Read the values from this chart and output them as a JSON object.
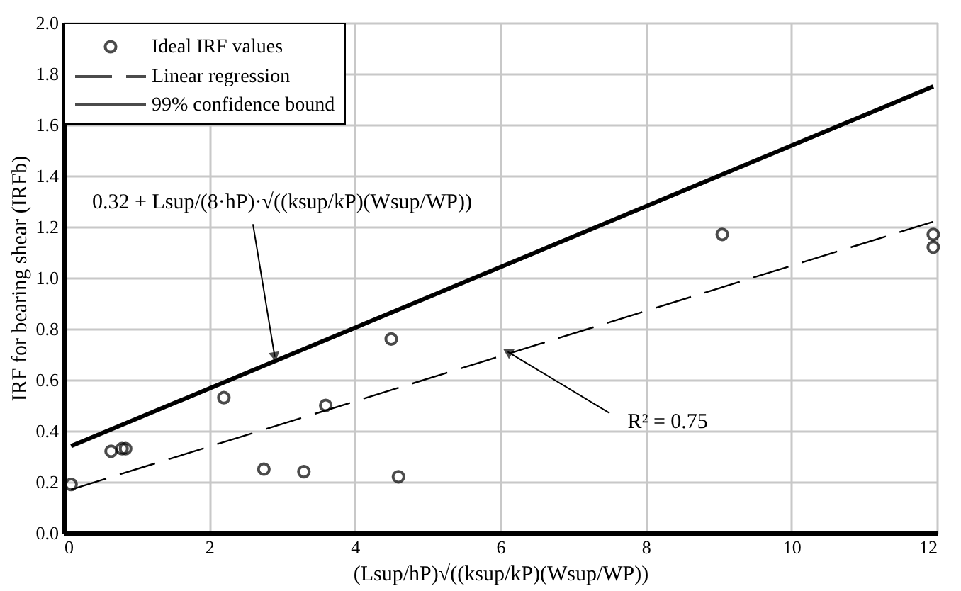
{
  "chart_data": {
    "type": "scatter",
    "xlabel": "(Lsup/hP)√((ksup/kP)(Wsup/WP))",
    "ylabel": "IRF for bearing shear (IRFb)",
    "xlim": [
      0,
      12
    ],
    "xticks": [
      0,
      2,
      4,
      6,
      8,
      10,
      12
    ],
    "ylim": [
      0,
      2.0
    ],
    "yticks": [
      {
        "value": 0,
        "label": "0.0"
      },
      {
        "value": 0.2,
        "label": "0.2"
      },
      {
        "value": 0.4,
        "label": "0.4"
      },
      {
        "value": 0.6,
        "label": "0.6"
      },
      {
        "value": 0.8,
        "label": "0.8"
      },
      {
        "value": 1.0,
        "label": "1.0"
      },
      {
        "value": 1.2,
        "label": "1.2"
      },
      {
        "value": 1.4,
        "label": "1.4"
      },
      {
        "value": 1.6,
        "label": "1.6"
      },
      {
        "value": 1.8,
        "label": "1.8"
      },
      {
        "value": 2.0,
        "label": "2.0"
      }
    ],
    "grid": true,
    "legend": "top left",
    "series": [
      {
        "name": "Ideal IRF values",
        "type": "scatter",
        "marker": "circle",
        "color": "#000000",
        "x": [
          0.1,
          0.65,
          0.8,
          0.85,
          2.2,
          2.75,
          3.3,
          3.6,
          4.5,
          4.6,
          9.05,
          11.95,
          11.95
        ],
        "values": [
          0.19,
          0.32,
          0.33,
          0.33,
          0.53,
          0.25,
          0.24,
          0.5,
          0.76,
          0.22,
          1.17,
          1.17,
          1.12
        ]
      },
      {
        "name": "Linear regression",
        "type": "line",
        "line_style": "dashed",
        "color": "#000000",
        "x": [
          0.1,
          11.95
        ],
        "values": [
          0.17,
          1.22
        ]
      },
      {
        "name": "99% confidence bound",
        "type": "line",
        "line_style": "solid",
        "color": "#000000",
        "x": [
          0.1,
          11.95
        ],
        "values": [
          0.34,
          1.75
        ]
      }
    ],
    "annotations": [
      {
        "text": "0.32 + Lsup/(8·hP)·√((ksup/kP)(Wsup/WP))",
        "x": 2.9,
        "y": 0.69
      },
      {
        "text": "R² = 0.75",
        "x": 6.1,
        "y": 0.71
      }
    ]
  }
}
